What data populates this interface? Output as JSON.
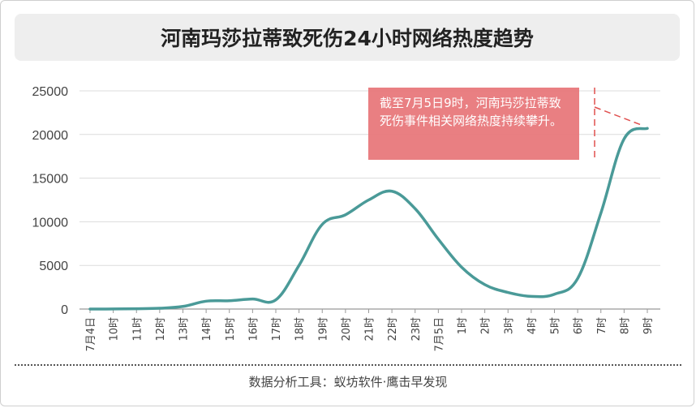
{
  "title": "河南玛莎拉蒂致死伤24小时网络热度趋势",
  "callout_text": "截至7月5日9时，河南玛莎拉蒂致死伤事件相关网络热度持续攀升。",
  "footer": "数据分析工具：蚁坊软件·鹰击早发现",
  "colors": {
    "line": "#4a9a98",
    "callout_bg": "#e8797c",
    "dash": "#e0504f",
    "axis": "#999999"
  },
  "chart_data": {
    "type": "line",
    "x_labels": [
      "7月4日",
      "10时",
      "11时",
      "12时",
      "13时",
      "14时",
      "15时",
      "16时",
      "17时",
      "18时",
      "19时",
      "20时",
      "21时",
      "22时",
      "23时",
      "7月5日",
      "1时",
      "2时",
      "3时",
      "4时",
      "5时",
      "6时",
      "7时",
      "8时",
      "9时"
    ],
    "y_ticks": [
      0,
      5000,
      10000,
      15000,
      20000,
      25000
    ],
    "ylim": [
      0,
      25000
    ],
    "values": [
      0,
      10,
      40,
      90,
      300,
      900,
      950,
      1150,
      1050,
      5000,
      9700,
      10800,
      12500,
      13500,
      11500,
      8000,
      4800,
      2800,
      1900,
      1450,
      1700,
      3500,
      11000,
      19500,
      20700
    ],
    "grid": true
  }
}
